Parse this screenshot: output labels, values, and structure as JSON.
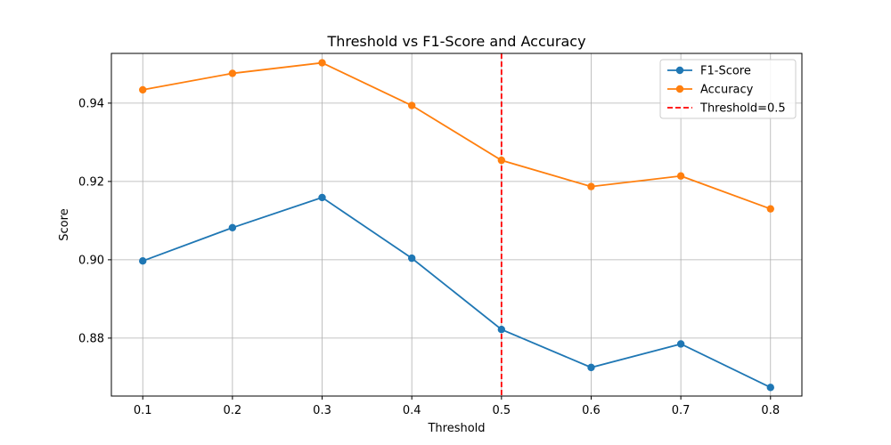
{
  "chart_data": {
    "type": "line",
    "title": "Threshold vs F1-Score and Accuracy",
    "xlabel": "Threshold",
    "ylabel": "Score",
    "x": [
      0.1,
      0.2,
      0.3,
      0.4,
      0.5,
      0.6,
      0.7,
      0.8
    ],
    "x_ticks": [
      "0.1",
      "0.2",
      "0.3",
      "0.4",
      "0.5",
      "0.6",
      "0.7",
      "0.8"
    ],
    "y_ticks": [
      "0.88",
      "0.90",
      "0.92",
      "0.94"
    ],
    "y_tick_values": [
      0.88,
      0.9,
      0.92,
      0.94
    ],
    "xlim": [
      0.065,
      0.835
    ],
    "ylim": [
      0.8652,
      0.9527
    ],
    "grid": true,
    "legend_position": "top-right",
    "series": [
      {
        "name": "F1-Score",
        "color": "#1f77b4",
        "values": [
          0.8997,
          0.9082,
          0.9159,
          0.9004,
          0.8822,
          0.8725,
          0.8785,
          0.8674
        ]
      },
      {
        "name": "Accuracy",
        "color": "#ff7f0e",
        "values": [
          0.9434,
          0.9476,
          0.9503,
          0.9394,
          0.9254,
          0.9187,
          0.9214,
          0.913
        ]
      }
    ],
    "threshold_line": {
      "name": "Threshold=0.5",
      "x": 0.5,
      "color": "#ff0000",
      "style": "dashed"
    }
  }
}
